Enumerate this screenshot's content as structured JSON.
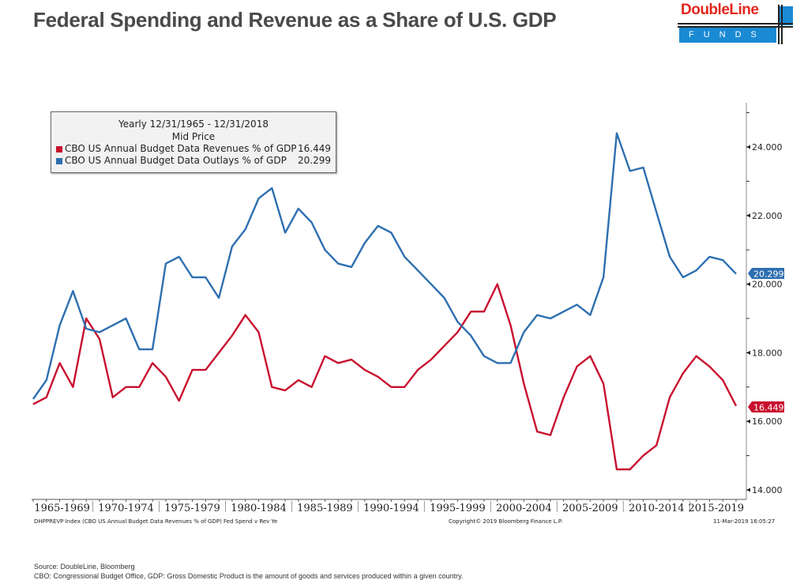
{
  "header": {
    "title": "Federal Spending and Revenue as a Share of U.S. GDP",
    "logo_brand": "DoubleLine",
    "logo_sub": "FUNDS"
  },
  "legend": {
    "line1": "Yearly 12/31/1965 - 12/31/2018",
    "line2": "Mid Price",
    "items": [
      {
        "name": "CBO US Annual Budget Data Revenues % of GDP",
        "value": "16.449",
        "color": "#c8102e"
      },
      {
        "name": "CBO US Annual Budget Data Outlays % of GDP",
        "value": "20.299",
        "color": "#2e6fb0"
      }
    ]
  },
  "footer": {
    "index_note": "DHPPREVP Index (CBO US Annual Budget Data Revenues % of GDP) Fed Spend v Rev  Ye",
    "copyright": "Copyright© 2019 Bloomberg Finance L.P.",
    "timestamp": "11-Mar-2019 16:05:27",
    "source": "Source: DoubleLine, Bloomberg",
    "definition": "CBO: Congressional Budget Office, GDP: Gross Domestic Product is the amount of goods and services produced within a given country."
  },
  "chart_data": {
    "type": "line",
    "title": "Federal Spending and Revenue as a Share of U.S. GDP",
    "xlabel": "",
    "ylabel": "",
    "x": [
      1965,
      1966,
      1967,
      1968,
      1969,
      1970,
      1971,
      1972,
      1973,
      1974,
      1975,
      1976,
      1977,
      1978,
      1979,
      1980,
      1981,
      1982,
      1983,
      1984,
      1985,
      1986,
      1987,
      1988,
      1989,
      1990,
      1991,
      1992,
      1993,
      1994,
      1995,
      1996,
      1997,
      1998,
      1999,
      2000,
      2001,
      2002,
      2003,
      2004,
      2005,
      2006,
      2007,
      2008,
      2009,
      2010,
      2011,
      2012,
      2013,
      2014,
      2015,
      2016,
      2017,
      2018
    ],
    "x_categories": [
      "1965-1969",
      "1970-1974",
      "1975-1979",
      "1980-1984",
      "1985-1989",
      "1990-1994",
      "1995-1999",
      "2000-2004",
      "2005-2009",
      "2010-2014",
      "2015-2019"
    ],
    "y_ticks": [
      "14.000",
      "16.000",
      "18.000",
      "20.000",
      "22.000",
      "24.000"
    ],
    "ylim": [
      13.5,
      25.2
    ],
    "y_axis_position": "right",
    "grid": false,
    "legend_position": "top-left",
    "series": [
      {
        "name": "CBO US Annual Budget Data Revenues % of GDP",
        "color": "#c8102e",
        "last_value_label": "16.449",
        "values": [
          16.5,
          16.7,
          17.7,
          17.0,
          19.0,
          18.4,
          16.7,
          17.0,
          17.0,
          17.7,
          17.3,
          16.6,
          17.5,
          17.5,
          18.0,
          18.5,
          19.1,
          18.6,
          17.0,
          16.9,
          17.2,
          17.0,
          17.9,
          17.7,
          17.8,
          17.5,
          17.3,
          17.0,
          17.0,
          17.5,
          17.8,
          18.2,
          18.6,
          19.2,
          19.2,
          20.0,
          18.8,
          17.1,
          15.7,
          15.6,
          16.7,
          17.6,
          17.9,
          17.1,
          14.6,
          14.6,
          15.0,
          15.3,
          16.7,
          17.4,
          17.9,
          17.6,
          17.2,
          16.449
        ]
      },
      {
        "name": "CBO US Annual Budget Data Outlays % of GDP",
        "color": "#2e6fb0",
        "last_value_label": "20.299",
        "values": [
          16.65,
          17.2,
          18.8,
          19.8,
          18.7,
          18.6,
          18.8,
          19.0,
          18.1,
          18.1,
          20.6,
          20.8,
          20.2,
          20.2,
          19.6,
          21.1,
          21.6,
          22.5,
          22.8,
          21.5,
          22.2,
          21.8,
          21.0,
          20.6,
          20.5,
          21.2,
          21.7,
          21.5,
          20.8,
          20.4,
          20.0,
          19.6,
          18.9,
          18.5,
          17.9,
          17.7,
          17.7,
          18.6,
          19.1,
          19.0,
          19.2,
          19.4,
          19.1,
          20.2,
          24.4,
          23.3,
          23.4,
          22.1,
          20.8,
          20.2,
          20.4,
          20.8,
          20.7,
          20.299
        ]
      }
    ]
  }
}
